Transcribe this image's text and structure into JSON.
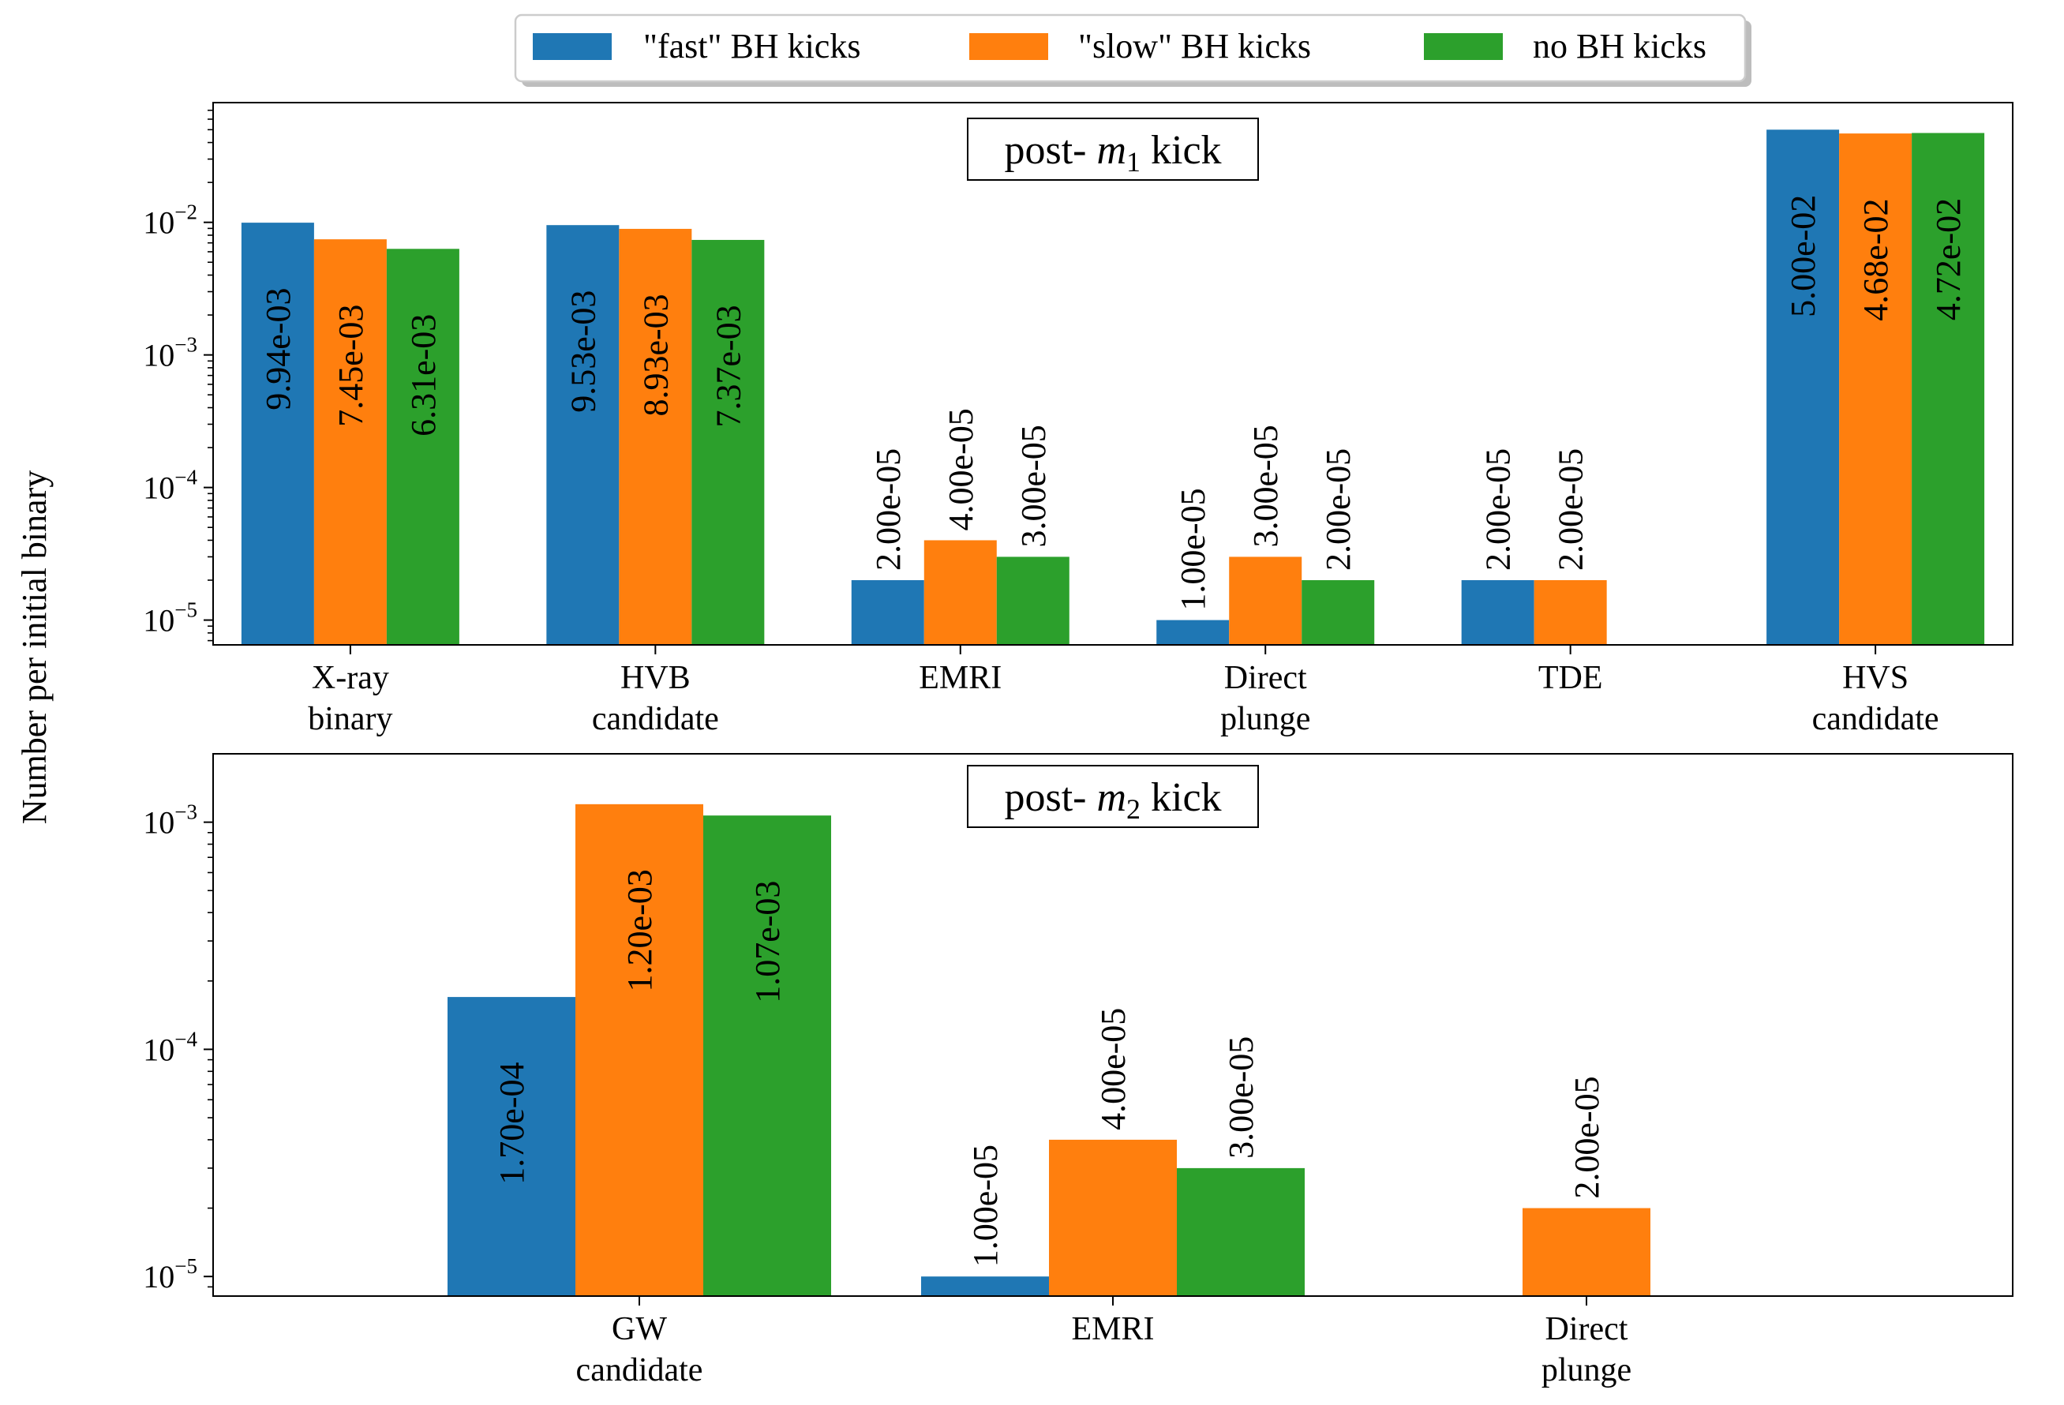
{
  "figure": {
    "ylabel": "Number per initial binary",
    "legend": [
      {
        "label": "\"fast\" BH kicks",
        "color": "#1f77b4"
      },
      {
        "label": "\"slow\" BH kicks",
        "color": "#ff7f0e"
      },
      {
        "label": "no BH kicks",
        "color": "#2ca02c"
      }
    ]
  },
  "chart_data": [
    {
      "type": "bar",
      "title": "post- m1 kick",
      "title_prefix": "post- ",
      "title_math": "m",
      "title_sub": "1",
      "title_suffix": " kick",
      "yscale": "log",
      "ylim": [
        6.5e-06,
        0.08
      ],
      "yticks": [
        {
          "base": "10",
          "exp": "−5",
          "value": 1e-05
        },
        {
          "base": "10",
          "exp": "−4",
          "value": 0.0001
        },
        {
          "base": "10",
          "exp": "−3",
          "value": 0.001
        },
        {
          "base": "10",
          "exp": "−2",
          "value": 0.01
        }
      ],
      "categories": [
        [
          "X-ray",
          "binary"
        ],
        [
          "HVB",
          "candidate"
        ],
        [
          "EMRI"
        ],
        [
          "Direct",
          "plunge"
        ],
        [
          "TDE"
        ],
        [
          "HVS",
          "candidate"
        ]
      ],
      "series": [
        {
          "name": "\"fast\" BH kicks",
          "color": "#1f77b4",
          "values": [
            0.00994,
            0.00953,
            2e-05,
            1e-05,
            2e-05,
            0.05
          ],
          "labels": [
            "9.94e-03",
            "9.53e-03",
            "2.00e-05",
            "1.00e-05",
            "2.00e-05",
            "5.00e-02"
          ]
        },
        {
          "name": "\"slow\" BH kicks",
          "color": "#ff7f0e",
          "values": [
            0.00745,
            0.00893,
            4e-05,
            3e-05,
            2e-05,
            0.0468
          ],
          "labels": [
            "7.45e-03",
            "8.93e-03",
            "4.00e-05",
            "3.00e-05",
            "2.00e-05",
            "4.68e-02"
          ]
        },
        {
          "name": "no BH kicks",
          "color": "#2ca02c",
          "values": [
            0.00631,
            0.00737,
            3e-05,
            2e-05,
            null,
            0.0472
          ],
          "labels": [
            "6.31e-03",
            "7.37e-03",
            "3.00e-05",
            "2.00e-05",
            null,
            "4.72e-02"
          ]
        }
      ]
    },
    {
      "type": "bar",
      "title": "post- m2 kick",
      "title_prefix": "post- ",
      "title_math": "m",
      "title_sub": "2",
      "title_suffix": " kick",
      "yscale": "log",
      "ylim": [
        8.2e-06,
        0.002
      ],
      "yticks": [
        {
          "base": "10",
          "exp": "−5",
          "value": 1e-05
        },
        {
          "base": "10",
          "exp": "−4",
          "value": 0.0001
        },
        {
          "base": "10",
          "exp": "−3",
          "value": 0.001
        }
      ],
      "categories": [
        [
          "GW",
          "candidate"
        ],
        [
          "EMRI"
        ],
        [
          "Direct",
          "plunge"
        ]
      ],
      "series": [
        {
          "name": "\"fast\" BH kicks",
          "color": "#1f77b4",
          "values": [
            0.00017,
            1e-05,
            null
          ],
          "labels": [
            "1.70e-04",
            "1.00e-05",
            null
          ]
        },
        {
          "name": "\"slow\" BH kicks",
          "color": "#ff7f0e",
          "values": [
            0.0012,
            4e-05,
            2e-05
          ],
          "labels": [
            "1.20e-03",
            "4.00e-05",
            "2.00e-05"
          ]
        },
        {
          "name": "no BH kicks",
          "color": "#2ca02c",
          "values": [
            0.00107,
            3e-05,
            null
          ],
          "labels": [
            "1.07e-03",
            "3.00e-05",
            null
          ]
        }
      ]
    }
  ]
}
